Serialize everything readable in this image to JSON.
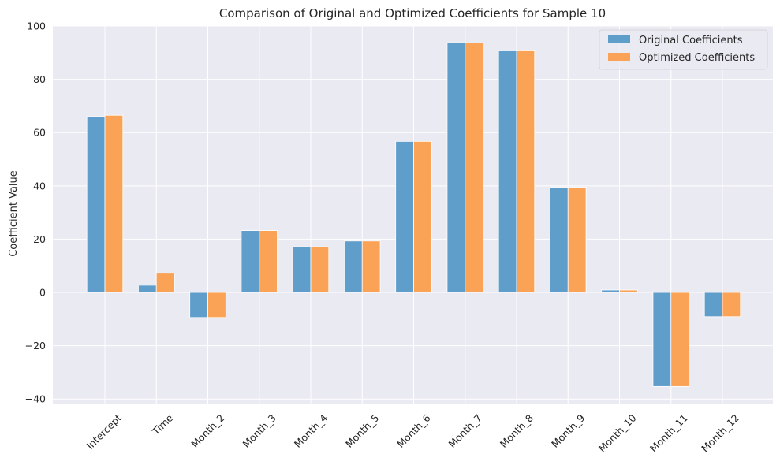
{
  "chart_data": {
    "type": "bar",
    "title": "Comparison of Original and Optimized Coefficients for Sample 10",
    "xlabel": "",
    "ylabel": "Coefficient Value",
    "ylim": [
      -42,
      100
    ],
    "yticks": [
      -40,
      -20,
      0,
      20,
      40,
      60,
      80,
      100
    ],
    "ytick_labels": [
      "−40",
      "−20",
      "0",
      "20",
      "40",
      "60",
      "80",
      "100"
    ],
    "grid": true,
    "legend_position": "top-right",
    "categories": [
      "Intercept",
      "Time",
      "Month_2",
      "Month_3",
      "Month_4",
      "Month_5",
      "Month_6",
      "Month_7",
      "Month_8",
      "Month_9",
      "Month_10",
      "Month_11",
      "Month_12"
    ],
    "series": [
      {
        "name": "Original Coefficients",
        "color": "#5f9dcb",
        "values": [
          66.0,
          2.7,
          -9.4,
          23.2,
          17.1,
          19.3,
          56.7,
          93.7,
          90.7,
          39.4,
          0.9,
          -35.3,
          -9.1
        ]
      },
      {
        "name": "Optimized Coefficients",
        "color": "#faa256",
        "values": [
          66.5,
          7.2,
          -9.4,
          23.2,
          17.1,
          19.3,
          56.7,
          93.7,
          90.7,
          39.4,
          0.9,
          -35.3,
          -9.1
        ]
      }
    ]
  },
  "style": {
    "plot_background": "#eaeaf2",
    "grid_color": "#ffffff"
  }
}
